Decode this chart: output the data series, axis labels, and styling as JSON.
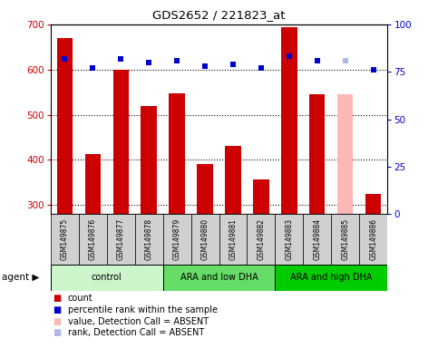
{
  "title": "GDS2652 / 221823_at",
  "samples": [
    "GSM149875",
    "GSM149876",
    "GSM149877",
    "GSM149878",
    "GSM149879",
    "GSM149880",
    "GSM149881",
    "GSM149882",
    "GSM149883",
    "GSM149884",
    "GSM149885",
    "GSM149886"
  ],
  "bar_values": [
    670,
    413,
    600,
    520,
    547,
    390,
    430,
    356,
    693,
    546,
    546,
    325
  ],
  "bar_colors": [
    "#cc0000",
    "#cc0000",
    "#cc0000",
    "#cc0000",
    "#cc0000",
    "#cc0000",
    "#cc0000",
    "#cc0000",
    "#cc0000",
    "#cc0000",
    "#ffb8b8",
    "#cc0000"
  ],
  "rank_values": [
    82,
    77,
    82,
    80,
    81,
    78,
    79,
    77,
    83,
    81,
    81,
    76
  ],
  "rank_absent": [
    false,
    false,
    false,
    false,
    false,
    false,
    false,
    false,
    false,
    false,
    true,
    false
  ],
  "ylim_left": [
    280,
    700
  ],
  "ylim_right": [
    0,
    100
  ],
  "yticks_left": [
    300,
    400,
    500,
    600,
    700
  ],
  "yticks_right": [
    0,
    25,
    50,
    75,
    100
  ],
  "group_defs": [
    {
      "label": "control",
      "start": 0,
      "end": 4,
      "color": "#ccf5cc"
    },
    {
      "label": "ARA and low DHA",
      "start": 4,
      "end": 8,
      "color": "#66dd66"
    },
    {
      "label": "ARA and high DHA",
      "start": 8,
      "end": 12,
      "color": "#00cc00"
    }
  ],
  "rank_dot_color": "#0000cc",
  "rank_absent_color": "#b0b8e8",
  "background_color": "#ffffff",
  "bar_width": 0.55,
  "sample_box_color": "#d0d0d0",
  "legend_items": [
    {
      "label": "count",
      "color": "#cc0000"
    },
    {
      "label": "percentile rank within the sample",
      "color": "#0000cc"
    },
    {
      "label": "value, Detection Call = ABSENT",
      "color": "#ffb8b8"
    },
    {
      "label": "rank, Detection Call = ABSENT",
      "color": "#b0b8e8"
    }
  ]
}
